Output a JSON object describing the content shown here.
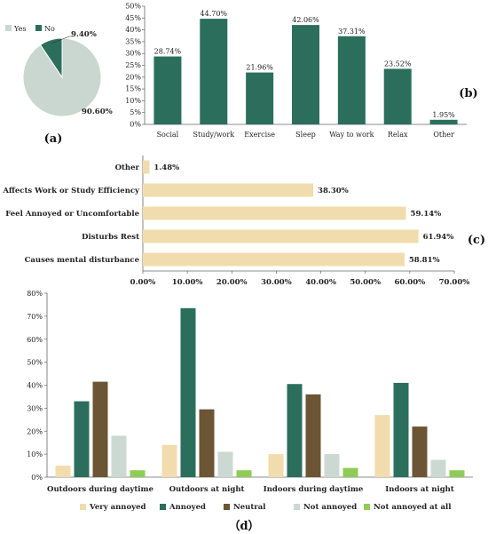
{
  "chart_data": [
    {
      "panel": "(a)",
      "type": "pie",
      "slices": [
        {
          "label": "Yes",
          "value": 90.6,
          "value_label": "90.60%",
          "color": "#c9d7d0"
        },
        {
          "label": "No",
          "value": 9.4,
          "value_label": "9.40%",
          "color": "#2c6e5c"
        }
      ],
      "legend_position": "top"
    },
    {
      "panel": "(b)",
      "type": "bar",
      "categories": [
        "Social",
        "Study/work",
        "Exercise",
        "Sleep",
        "Way to work",
        "Relax",
        "Other"
      ],
      "values": [
        28.74,
        44.7,
        21.96,
        42.06,
        37.31,
        23.52,
        1.95
      ],
      "value_labels": [
        "28.74%",
        "44.70%",
        "21.96%",
        "42.06%",
        "37.31%",
        "23.52%",
        "1.95%"
      ],
      "yticks": [
        "0%",
        "5%",
        "10%",
        "15%",
        "20%",
        "25%",
        "30%",
        "35%",
        "40%",
        "45%",
        "50%"
      ],
      "ylim": [
        0,
        50
      ],
      "color": "#2c6e5c",
      "grid": false
    },
    {
      "panel": "(c)",
      "type": "bar",
      "orientation": "horizontal",
      "categories": [
        "Other",
        "Affects Work or Study Efficiency",
        "Feel Annoyed or Uncomfortable",
        "Disturbs Rest",
        "Causes mental disturbance"
      ],
      "values": [
        1.48,
        38.3,
        59.14,
        61.94,
        58.81
      ],
      "value_labels": [
        "1.48%",
        "38.30%",
        "59.14%",
        "61.94%",
        "58.81%"
      ],
      "xticks": [
        "0.00%",
        "10.00%",
        "20.00%",
        "30.00%",
        "40.00%",
        "50.00%",
        "60.00%",
        "70.00%"
      ],
      "xlim": [
        0,
        70
      ],
      "color": "#f1dcae",
      "grid": false
    },
    {
      "panel": "(d)",
      "type": "bar",
      "categories": [
        "Outdoors during daytime",
        "Outdoors at night",
        "Indoors during daytime",
        "Indoors at night"
      ],
      "series": [
        {
          "name": "Very annoyed",
          "values": [
            5,
            14,
            10,
            27
          ],
          "color": "#f1dcae"
        },
        {
          "name": "Annoyed",
          "values": [
            33,
            73.5,
            40.5,
            41
          ],
          "color": "#2c6e5c"
        },
        {
          "name": "Neutral",
          "values": [
            41.5,
            29.5,
            36,
            22
          ],
          "color": "#6b5535"
        },
        {
          "name": "Not annoyed",
          "values": [
            18,
            11,
            10,
            7.5
          ],
          "color": "#ccd9d3"
        },
        {
          "name": "Not annoyed at all",
          "values": [
            3,
            3,
            4,
            3
          ],
          "color": "#8fcc55"
        }
      ],
      "yticks": [
        "0%",
        "10%",
        "20%",
        "30%",
        "40%",
        "50%",
        "60%",
        "70%",
        "80%"
      ],
      "ylim": [
        0,
        80
      ],
      "legend_position": "bottom",
      "grid": false
    }
  ],
  "panel_labels": {
    "a": "(a)",
    "b": "(b)",
    "c": "(c)",
    "d": "（d）"
  }
}
